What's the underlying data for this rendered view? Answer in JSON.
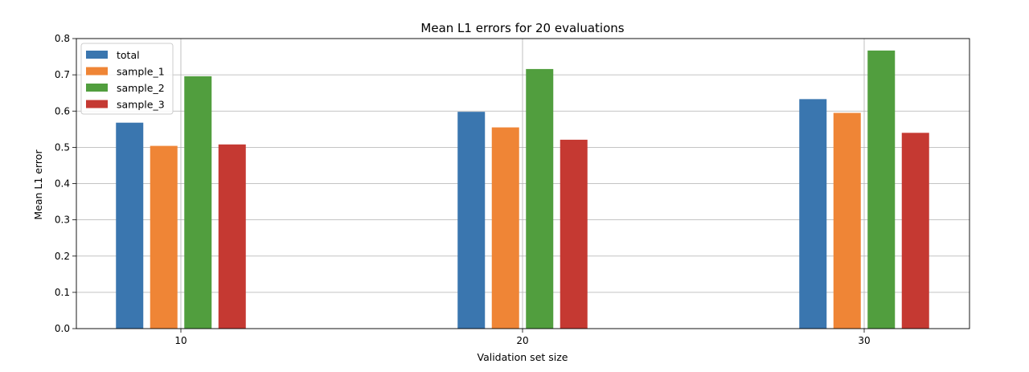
{
  "chart_data": {
    "type": "bar",
    "title": "Mean L1 errors for 20 evaluations",
    "xlabel": "Validation set size",
    "ylabel": "Mean L1 error",
    "categories": [
      "10",
      "20",
      "30"
    ],
    "ylim": [
      0,
      0.8
    ],
    "yticks": [
      "0.0",
      "0.1",
      "0.2",
      "0.3",
      "0.4",
      "0.5",
      "0.6",
      "0.7",
      "0.8"
    ],
    "grid": true,
    "legend_position": "top-left",
    "series": [
      {
        "name": "total",
        "color": "#3a76af",
        "values": [
          0.568,
          0.598,
          0.633
        ]
      },
      {
        "name": "sample_1",
        "color": "#ef8536",
        "values": [
          0.504,
          0.555,
          0.595
        ]
      },
      {
        "name": "sample_2",
        "color": "#519e3e",
        "values": [
          0.696,
          0.716,
          0.767
        ]
      },
      {
        "name": "sample_3",
        "color": "#c53932",
        "values": [
          0.508,
          0.521,
          0.54
        ]
      }
    ]
  }
}
